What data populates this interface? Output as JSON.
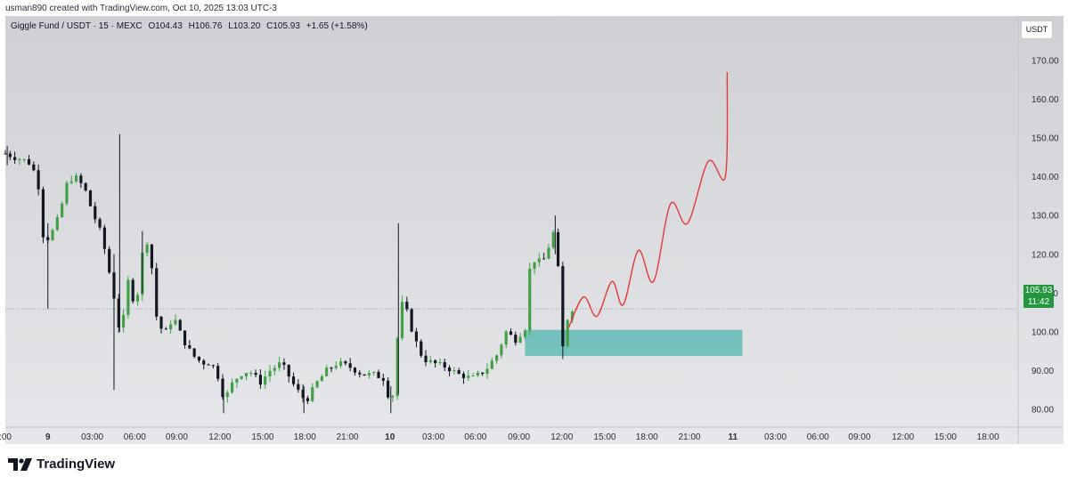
{
  "header": {
    "created_by": "usman890 created with TradingView.com, Oct 10, 2025 13:03 UTC-3"
  },
  "legend": {
    "symbol": "Giggle Fund / USDT · 15 · MEXC",
    "open": "O104.43",
    "high": "H106.76",
    "low": "L103.20",
    "close": "C105.93",
    "change": "+1.65 (+1.58%)"
  },
  "toolbar": {
    "currency_label": "USDT"
  },
  "last_price": {
    "value": "105.93",
    "countdown": "11:42"
  },
  "brand": {
    "name": "TradingView"
  },
  "colors": {
    "up": "#26a69a",
    "up_candle": "#43a047",
    "down": "#131722",
    "projection": "#e53935",
    "zone": "#4db6ac",
    "price_tag": "#22973e"
  },
  "chart_data": {
    "type": "candlestick",
    "title": "",
    "xlabel": "",
    "ylabel": "",
    "ylim": [
      77,
      173
    ],
    "y_ticks": [
      80,
      90,
      100,
      110,
      120,
      130,
      140,
      150,
      160,
      170
    ],
    "y_tick_labels": [
      "80.00",
      "90.00",
      "100.00",
      "110.00",
      "120.00",
      "130.00",
      "140.00",
      "150.00",
      "160.00",
      "170.00"
    ],
    "x_ticks": [
      {
        "label": ":00",
        "pos": 0.0,
        "bold": false
      },
      {
        "label": "9",
        "pos": 2.25,
        "bold": true
      },
      {
        "label": "03:00",
        "pos": 4.6,
        "bold": false
      },
      {
        "label": "06:00",
        "pos": 6.85,
        "bold": false
      },
      {
        "label": "09:00",
        "pos": 9.07,
        "bold": false
      },
      {
        "label": "12:00",
        "pos": 11.35,
        "bold": false
      },
      {
        "label": "15:00",
        "pos": 13.62,
        "bold": false
      },
      {
        "label": "18:00",
        "pos": 15.85,
        "bold": false
      },
      {
        "label": "21:00",
        "pos": 18.1,
        "bold": false
      },
      {
        "label": "10",
        "pos": 20.35,
        "bold": true
      },
      {
        "label": "03:00",
        "pos": 22.65,
        "bold": false
      },
      {
        "label": "06:00",
        "pos": 24.88,
        "bold": false
      },
      {
        "label": "09:00",
        "pos": 27.18,
        "bold": false
      },
      {
        "label": "12:00",
        "pos": 29.45,
        "bold": false
      },
      {
        "label": "15:00",
        "pos": 31.72,
        "bold": false
      },
      {
        "label": "18:00",
        "pos": 33.95,
        "bold": false
      },
      {
        "label": "21:00",
        "pos": 36.2,
        "bold": false
      },
      {
        "label": "11",
        "pos": 38.5,
        "bold": true
      },
      {
        "label": "03:00",
        "pos": 40.75,
        "bold": false
      },
      {
        "label": "06:00",
        "pos": 43.0,
        "bold": false
      },
      {
        "label": "09:00",
        "pos": 45.2,
        "bold": false
      },
      {
        "label": "12:00",
        "pos": 47.5,
        "bold": false
      },
      {
        "label": "15:00",
        "pos": 49.75,
        "bold": false
      },
      {
        "label": "18:00",
        "pos": 52.0,
        "bold": false
      }
    ],
    "x_range": [
      0,
      53.5
    ],
    "bar_hours": 0.25,
    "last_price": 105.93,
    "anchors": [
      [
        0.0,
        146
      ],
      [
        0.5,
        145
      ],
      [
        1.2,
        144
      ],
      [
        1.7,
        140
      ],
      [
        2.0,
        125
      ],
      [
        2.3,
        124
      ],
      [
        2.7,
        128
      ],
      [
        3.0,
        133
      ],
      [
        3.3,
        139
      ],
      [
        3.7,
        140
      ],
      [
        4.2,
        137
      ],
      [
        4.6,
        131
      ],
      [
        5.1,
        125
      ],
      [
        5.6,
        113
      ],
      [
        5.9,
        105
      ],
      [
        6.1,
        98
      ],
      [
        6.5,
        113
      ],
      [
        6.9,
        106
      ],
      [
        7.3,
        122
      ],
      [
        7.6,
        124
      ],
      [
        8.0,
        104
      ],
      [
        8.4,
        99
      ],
      [
        8.9,
        104
      ],
      [
        9.4,
        98
      ],
      [
        9.9,
        94
      ],
      [
        10.4,
        92
      ],
      [
        10.9,
        92
      ],
      [
        11.3,
        88
      ],
      [
        11.6,
        82
      ],
      [
        11.9,
        86
      ],
      [
        12.4,
        89
      ],
      [
        12.9,
        90
      ],
      [
        13.5,
        87
      ],
      [
        14.0,
        90
      ],
      [
        14.6,
        92
      ],
      [
        15.3,
        86
      ],
      [
        15.9,
        82
      ],
      [
        16.5,
        87
      ],
      [
        17.0,
        90
      ],
      [
        17.6,
        92
      ],
      [
        18.2,
        91
      ],
      [
        18.9,
        89
      ],
      [
        19.5,
        89
      ],
      [
        20.0,
        88
      ],
      [
        20.3,
        83
      ],
      [
        20.6,
        84
      ],
      [
        20.85,
        108
      ],
      [
        21.2,
        106
      ],
      [
        21.6,
        99
      ],
      [
        22.1,
        93
      ],
      [
        22.6,
        92
      ],
      [
        23.3,
        91
      ],
      [
        24.0,
        89
      ],
      [
        24.7,
        88
      ],
      [
        25.4,
        90
      ],
      [
        26.0,
        94
      ],
      [
        26.5,
        100
      ],
      [
        27.0,
        98
      ],
      [
        27.5,
        101
      ],
      [
        27.8,
        119
      ],
      [
        28.2,
        118
      ],
      [
        28.6,
        119
      ],
      [
        28.9,
        125
      ],
      [
        29.1,
        126
      ],
      [
        29.3,
        113
      ],
      [
        29.5,
        96
      ],
      [
        29.8,
        105
      ],
      [
        30.0,
        105.93
      ]
    ],
    "wicks": [
      {
        "hour": 0.1,
        "high": 148,
        "low": 143
      },
      {
        "hour": 2.25,
        "high": 128,
        "low": 106
      },
      {
        "hour": 5.75,
        "high": 120,
        "low": 85
      },
      {
        "hour": 6.05,
        "high": 151,
        "low": 100
      },
      {
        "hour": 7.25,
        "high": 126,
        "low": 110
      },
      {
        "hour": 11.55,
        "high": 88,
        "low": 79
      },
      {
        "hour": 15.8,
        "high": 86,
        "low": 79
      },
      {
        "hour": 20.8,
        "high": 128,
        "low": 84
      },
      {
        "hour": 20.4,
        "high": 86,
        "low": 79
      },
      {
        "hour": 29.1,
        "high": 130,
        "low": 120
      },
      {
        "hour": 29.5,
        "high": 100,
        "low": 93
      }
    ],
    "demand_zone": {
      "from_hour": 27.5,
      "to_hour": 39.0,
      "low": 93.8,
      "high": 100.5
    },
    "projection": [
      [
        29.8,
        101
      ],
      [
        30.6,
        109
      ],
      [
        31.3,
        104
      ],
      [
        32.1,
        113
      ],
      [
        32.7,
        107
      ],
      [
        33.5,
        121
      ],
      [
        34.3,
        113
      ],
      [
        35.2,
        133
      ],
      [
        36.1,
        128
      ],
      [
        37.2,
        144
      ],
      [
        38.1,
        140
      ],
      [
        38.2,
        167
      ]
    ]
  }
}
